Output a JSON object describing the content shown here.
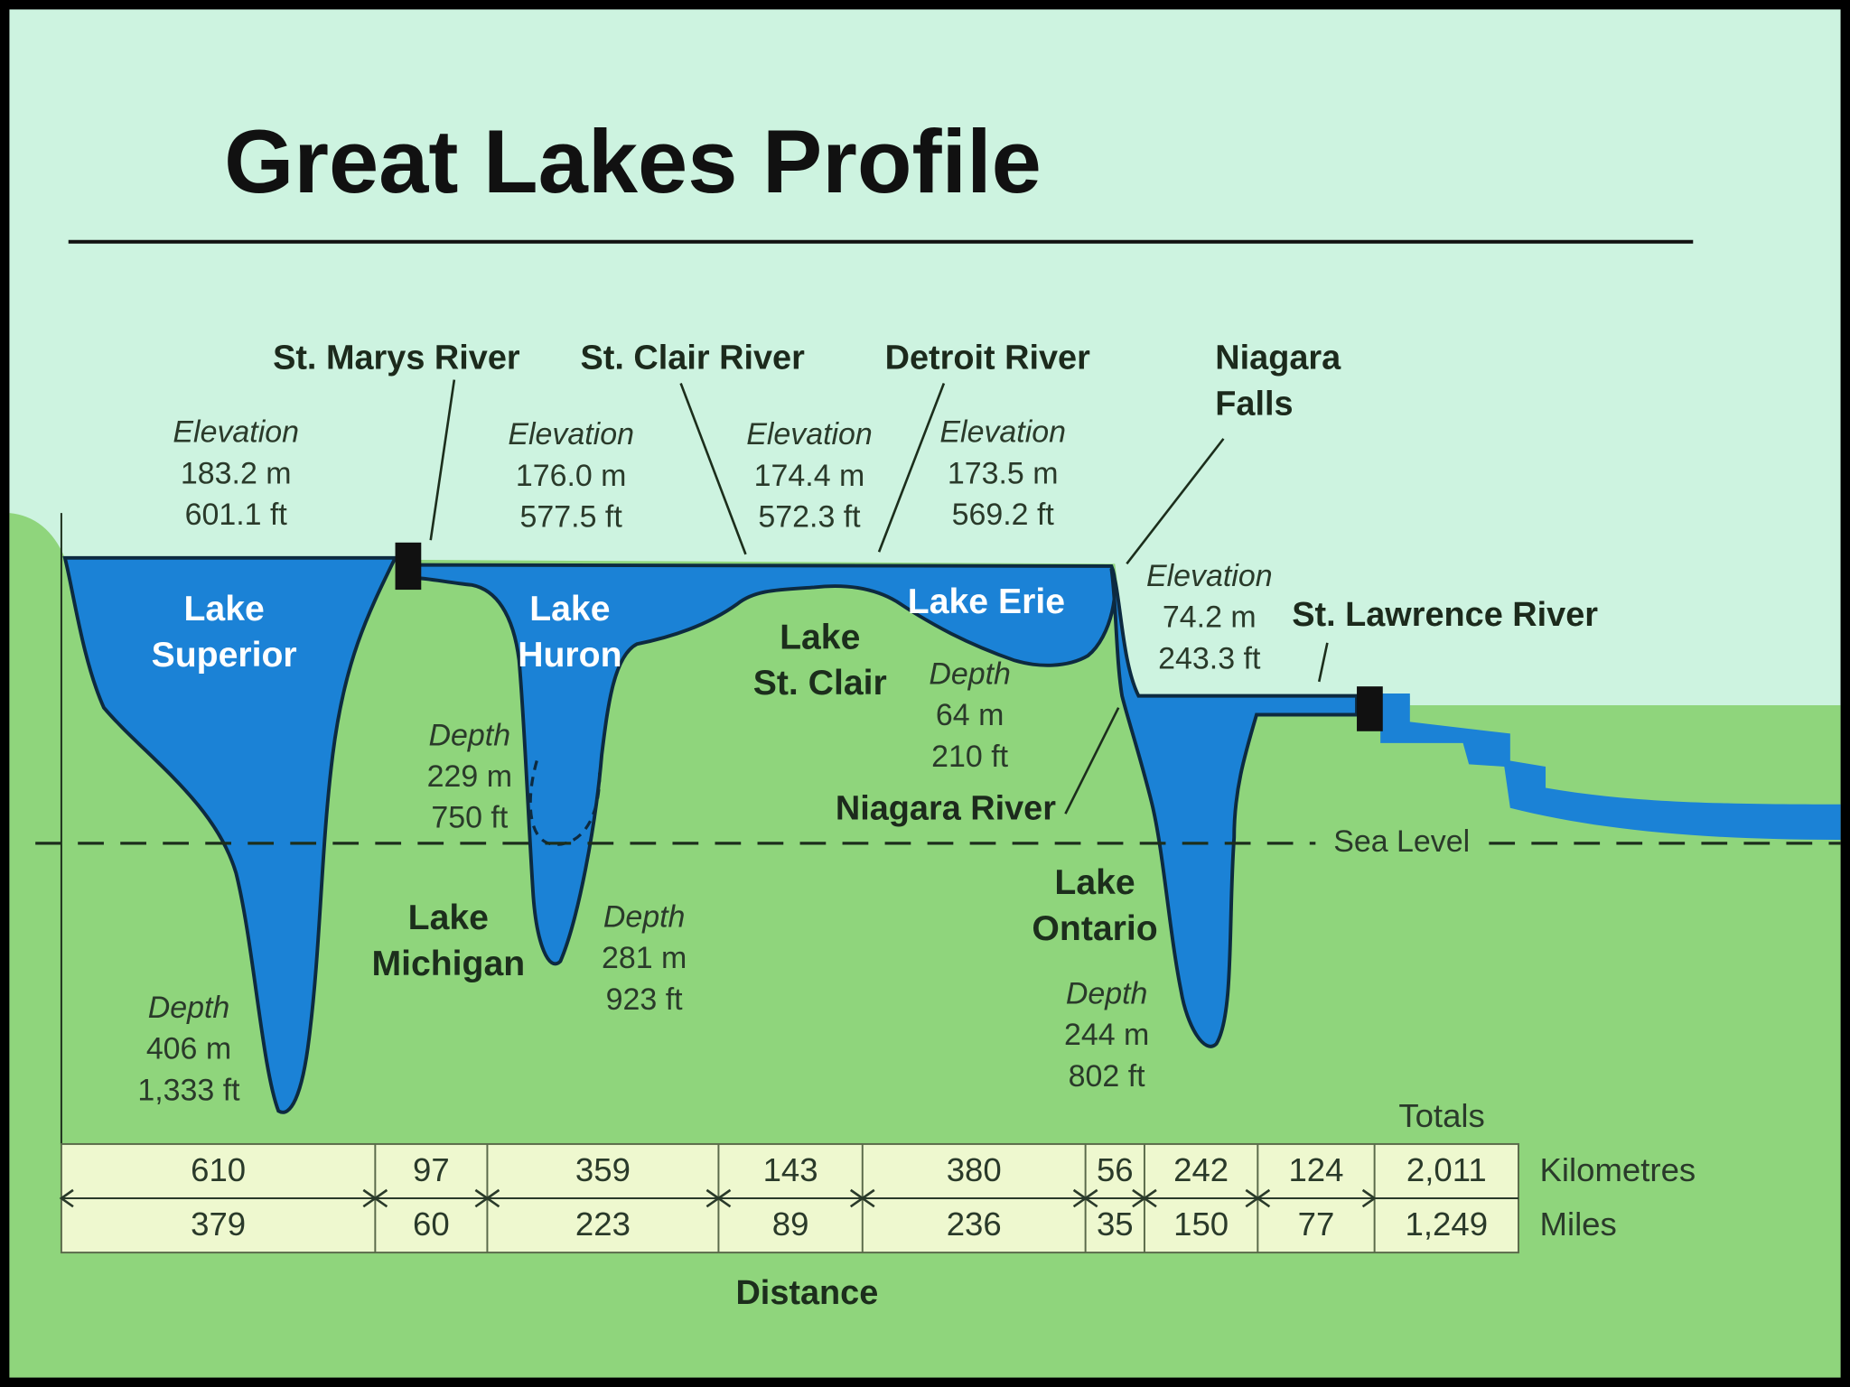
{
  "title": "Great Lakes Profile",
  "connectors": [
    [
      "St. Marys River"
    ],
    [
      "St. Clair River"
    ],
    [
      "Detroit River"
    ],
    [
      "Niagara",
      "Falls"
    ],
    [
      "St. Lawrence River"
    ],
    [
      "Niagara River"
    ]
  ],
  "lakes": [
    [
      "Lake",
      "Superior"
    ],
    [
      "Lake",
      "Michigan"
    ],
    [
      "Lake",
      "Huron"
    ],
    [
      "Lake",
      "St. Clair"
    ],
    [
      "Lake Erie"
    ],
    [
      "Lake",
      "Ontario"
    ]
  ],
  "elevations": [
    {
      "label": "Elevation",
      "lines": [
        "183.2 m",
        "601.1 ft"
      ]
    },
    {
      "label": "Elevation",
      "lines": [
        "176.0 m",
        "577.5 ft"
      ]
    },
    {
      "label": "Elevation",
      "lines": [
        "174.4 m",
        "572.3 ft"
      ]
    },
    {
      "label": "Elevation",
      "lines": [
        "173.5 m",
        "569.2 ft"
      ]
    },
    {
      "label": "Elevation",
      "lines": [
        "74.2 m",
        "243.3 ft"
      ]
    }
  ],
  "depths": [
    {
      "label": "Depth",
      "lines": [
        "406 m",
        "1,333 ft"
      ]
    },
    {
      "label": "Depth",
      "lines": [
        "229 m",
        "750 ft"
      ]
    },
    {
      "label": "Depth",
      "lines": [
        "281 m",
        "923 ft"
      ]
    },
    {
      "label": "Depth",
      "lines": [
        "64 m",
        "210 ft"
      ]
    },
    {
      "label": "Depth",
      "lines": [
        "244 m",
        "802 ft"
      ]
    }
  ],
  "sea_level": "Sea Level",
  "distance": {
    "totals_header": "Totals",
    "rows": [
      {
        "unit": "Kilometres",
        "values": [
          "610",
          "97",
          "359",
          "143",
          "380",
          "56",
          "242",
          "124",
          "2,011"
        ]
      },
      {
        "unit": "Miles",
        "values": [
          "379",
          "60",
          "223",
          "89",
          "236",
          "35",
          "150",
          "77",
          "1,249"
        ]
      }
    ],
    "label": "Distance"
  }
}
